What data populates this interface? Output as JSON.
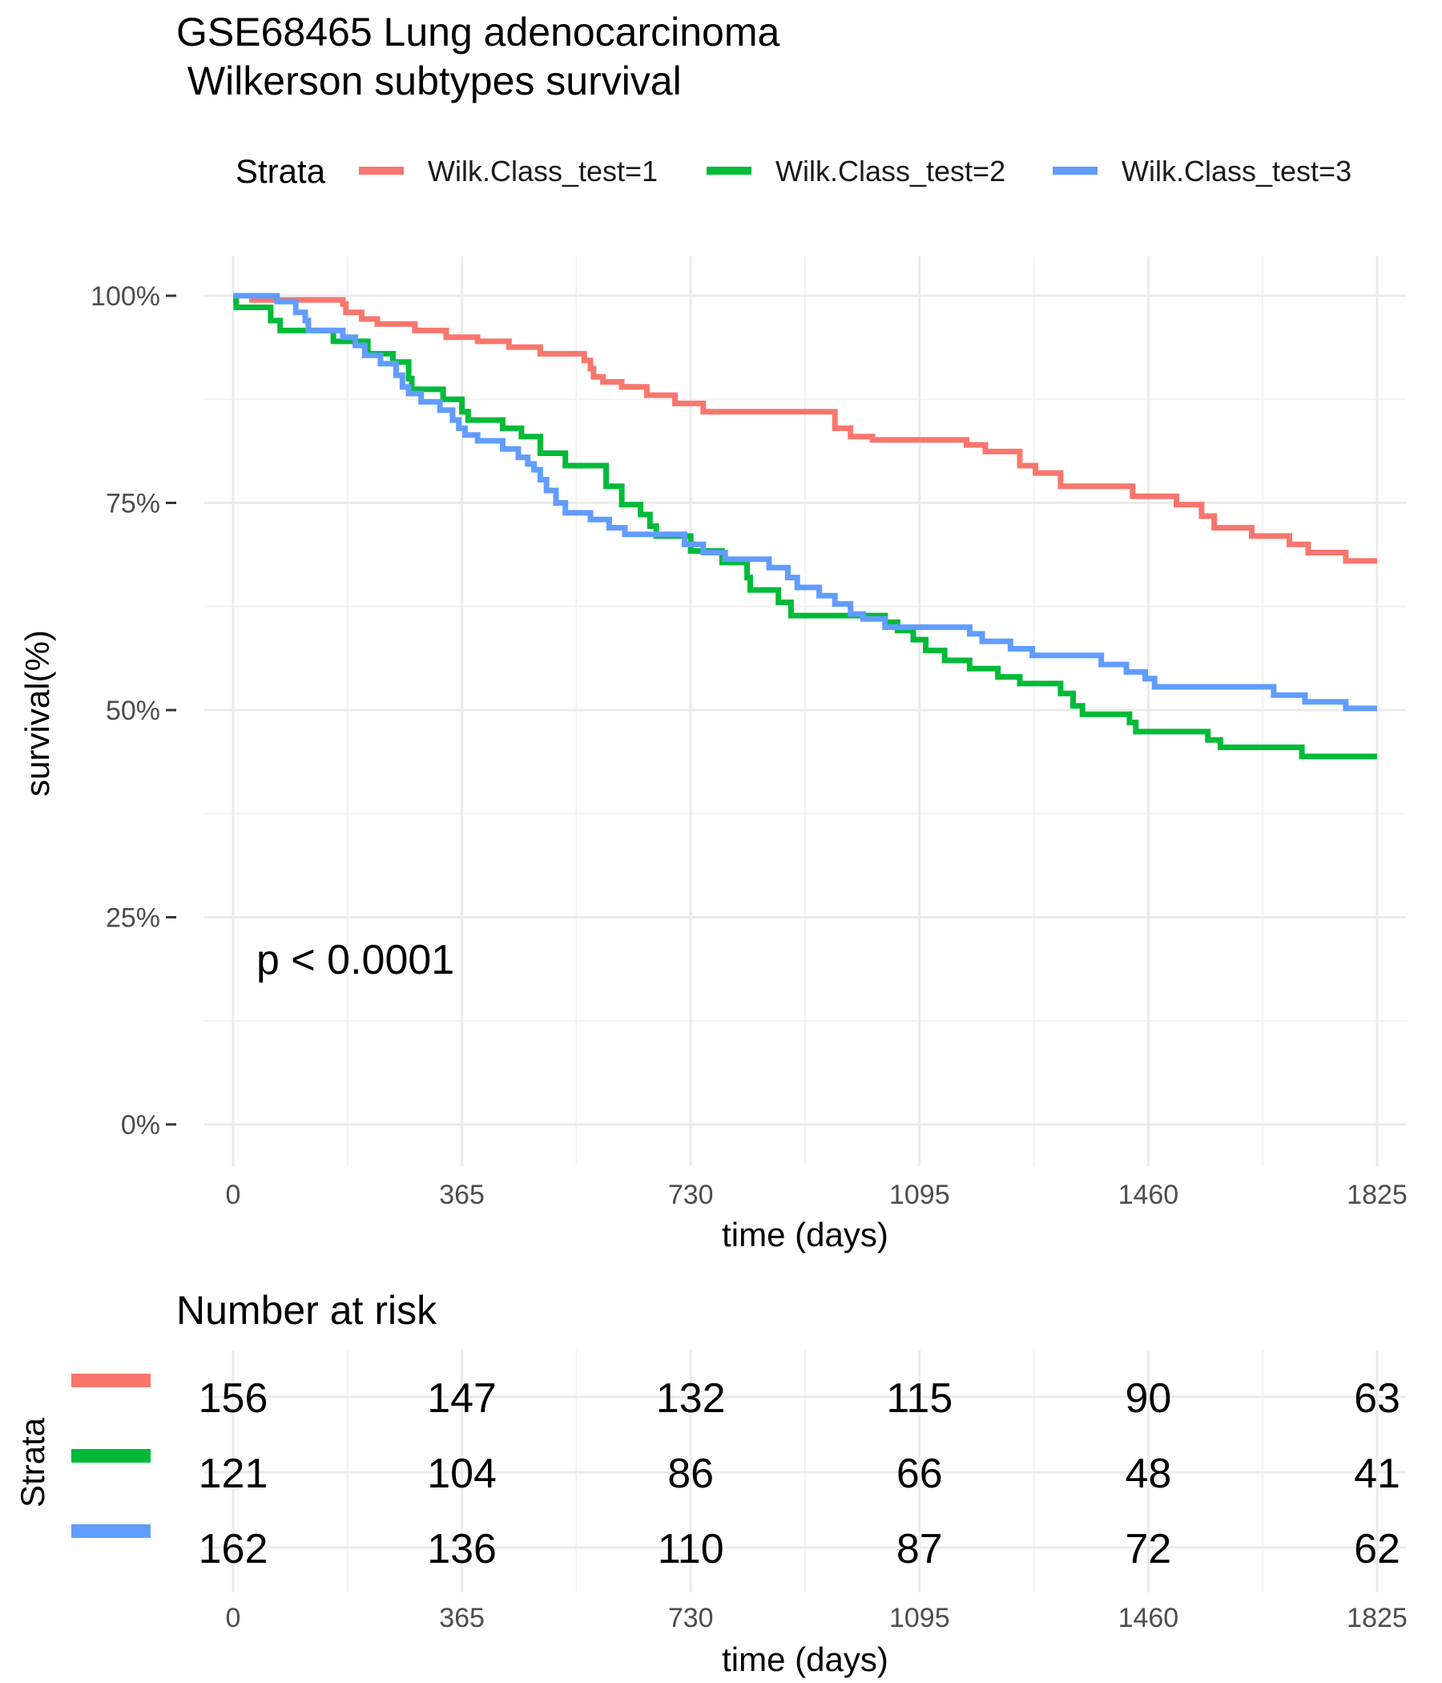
{
  "title_line1": "GSE68465 Lung adenocarcinoma",
  "title_line2": " Wilkerson subtypes survival",
  "legend": {
    "title": "Strata",
    "items": [
      {
        "label": "Wilk.Class_test=1",
        "color": "#F8766D"
      },
      {
        "label": "Wilk.Class_test=2",
        "color": "#00BA38"
      },
      {
        "label": "Wilk.Class_test=3",
        "color": "#619CFF"
      }
    ]
  },
  "chart_data": [
    {
      "type": "line",
      "subtype": "kaplan-meier-step",
      "xlabel": "time (days)",
      "ylabel": "survival(%)",
      "xlim": [
        0,
        1825
      ],
      "ylim": [
        0,
        1
      ],
      "x_ticks": [
        0,
        365,
        730,
        1095,
        1460,
        1825
      ],
      "x_tick_labels": [
        "0",
        "365",
        "730",
        "1095",
        "1460",
        "1825"
      ],
      "y_ticks": [
        0,
        0.25,
        0.5,
        0.75,
        1.0
      ],
      "y_tick_labels": [
        "0%",
        "25%",
        "50%",
        "75%",
        "100%"
      ],
      "grid": true,
      "legend_position": "top",
      "annotation": "p < 0.0001",
      "series": [
        {
          "name": "Wilk.Class_test=1",
          "color": "#F8766D",
          "points": [
            [
              0,
              1.0
            ],
            [
              30,
              0.995
            ],
            [
              175,
              0.99
            ],
            [
              180,
              0.98
            ],
            [
              205,
              0.972
            ],
            [
              230,
              0.966
            ],
            [
              290,
              0.958
            ],
            [
              340,
              0.95
            ],
            [
              390,
              0.945
            ],
            [
              440,
              0.938
            ],
            [
              490,
              0.93
            ],
            [
              560,
              0.922
            ],
            [
              570,
              0.912
            ],
            [
              575,
              0.902
            ],
            [
              590,
              0.896
            ],
            [
              620,
              0.89
            ],
            [
              660,
              0.88
            ],
            [
              705,
              0.87
            ],
            [
              750,
              0.86
            ],
            [
              960,
              0.84
            ],
            [
              985,
              0.83
            ],
            [
              1020,
              0.826
            ],
            [
              1170,
              0.82
            ],
            [
              1200,
              0.812
            ],
            [
              1255,
              0.795
            ],
            [
              1280,
              0.786
            ],
            [
              1320,
              0.77
            ],
            [
              1435,
              0.758
            ],
            [
              1505,
              0.748
            ],
            [
              1545,
              0.734
            ],
            [
              1565,
              0.72
            ],
            [
              1625,
              0.71
            ],
            [
              1685,
              0.7
            ],
            [
              1715,
              0.69
            ],
            [
              1775,
              0.68
            ],
            [
              1825,
              0.68
            ]
          ]
        },
        {
          "name": "Wilk.Class_test=2",
          "color": "#00BA38",
          "points": [
            [
              0,
              0.995
            ],
            [
              5,
              0.986
            ],
            [
              60,
              0.97
            ],
            [
              75,
              0.958
            ],
            [
              160,
              0.945
            ],
            [
              215,
              0.93
            ],
            [
              255,
              0.92
            ],
            [
              280,
              0.9
            ],
            [
              285,
              0.887
            ],
            [
              335,
              0.875
            ],
            [
              365,
              0.86
            ],
            [
              375,
              0.85
            ],
            [
              430,
              0.84
            ],
            [
              460,
              0.83
            ],
            [
              490,
              0.81
            ],
            [
              530,
              0.795
            ],
            [
              595,
              0.77
            ],
            [
              620,
              0.748
            ],
            [
              650,
              0.736
            ],
            [
              665,
              0.722
            ],
            [
              675,
              0.71
            ],
            [
              730,
              0.692
            ],
            [
              780,
              0.678
            ],
            [
              820,
              0.66
            ],
            [
              825,
              0.645
            ],
            [
              870,
              0.63
            ],
            [
              890,
              0.614
            ],
            [
              1040,
              0.606
            ],
            [
              1060,
              0.596
            ],
            [
              1085,
              0.585
            ],
            [
              1105,
              0.572
            ],
            [
              1135,
              0.56
            ],
            [
              1175,
              0.55
            ],
            [
              1220,
              0.54
            ],
            [
              1255,
              0.532
            ],
            [
              1320,
              0.52
            ],
            [
              1340,
              0.505
            ],
            [
              1355,
              0.495
            ],
            [
              1430,
              0.485
            ],
            [
              1440,
              0.474
            ],
            [
              1555,
              0.464
            ],
            [
              1575,
              0.455
            ],
            [
              1705,
              0.444
            ],
            [
              1825,
              0.444
            ]
          ]
        },
        {
          "name": "Wilk.Class_test=3",
          "color": "#619CFF",
          "points": [
            [
              0,
              1.0
            ],
            [
              70,
              0.993
            ],
            [
              100,
              0.98
            ],
            [
              115,
              0.97
            ],
            [
              120,
              0.958
            ],
            [
              175,
              0.95
            ],
            [
              195,
              0.94
            ],
            [
              210,
              0.928
            ],
            [
              235,
              0.918
            ],
            [
              260,
              0.904
            ],
            [
              270,
              0.89
            ],
            [
              280,
              0.882
            ],
            [
              300,
              0.872
            ],
            [
              330,
              0.862
            ],
            [
              350,
              0.85
            ],
            [
              360,
              0.84
            ],
            [
              370,
              0.832
            ],
            [
              390,
              0.825
            ],
            [
              430,
              0.815
            ],
            [
              455,
              0.805
            ],
            [
              470,
              0.797
            ],
            [
              480,
              0.79
            ],
            [
              490,
              0.778
            ],
            [
              500,
              0.765
            ],
            [
              515,
              0.75
            ],
            [
              530,
              0.738
            ],
            [
              570,
              0.73
            ],
            [
              600,
              0.72
            ],
            [
              625,
              0.712
            ],
            [
              675,
              0.712
            ],
            [
              720,
              0.7
            ],
            [
              750,
              0.69
            ],
            [
              785,
              0.682
            ],
            [
              855,
              0.672
            ],
            [
              885,
              0.66
            ],
            [
              900,
              0.648
            ],
            [
              935,
              0.638
            ],
            [
              960,
              0.628
            ],
            [
              985,
              0.616
            ],
            [
              1005,
              0.61
            ],
            [
              1040,
              0.6
            ],
            [
              1175,
              0.592
            ],
            [
              1195,
              0.583
            ],
            [
              1240,
              0.574
            ],
            [
              1275,
              0.566
            ],
            [
              1385,
              0.555
            ],
            [
              1425,
              0.546
            ],
            [
              1455,
              0.538
            ],
            [
              1470,
              0.528
            ],
            [
              1660,
              0.518
            ],
            [
              1710,
              0.51
            ],
            [
              1775,
              0.502
            ],
            [
              1825,
              0.502
            ]
          ]
        }
      ]
    },
    {
      "type": "table",
      "title": "Number at risk",
      "xlabel": "time (days)",
      "ylabel": "Strata",
      "x_ticks": [
        0,
        365,
        730,
        1095,
        1460,
        1825
      ],
      "x_tick_labels": [
        "0",
        "365",
        "730",
        "1095",
        "1460",
        "1825"
      ],
      "rows": [
        {
          "name": "Wilk.Class_test=1",
          "color": "#F8766D",
          "values": [
            156,
            147,
            132,
            115,
            90,
            63
          ]
        },
        {
          "name": "Wilk.Class_test=2",
          "color": "#00BA38",
          "values": [
            121,
            104,
            86,
            66,
            48,
            41
          ]
        },
        {
          "name": "Wilk.Class_test=3",
          "color": "#619CFF",
          "values": [
            162,
            136,
            110,
            87,
            72,
            62
          ]
        }
      ]
    }
  ]
}
